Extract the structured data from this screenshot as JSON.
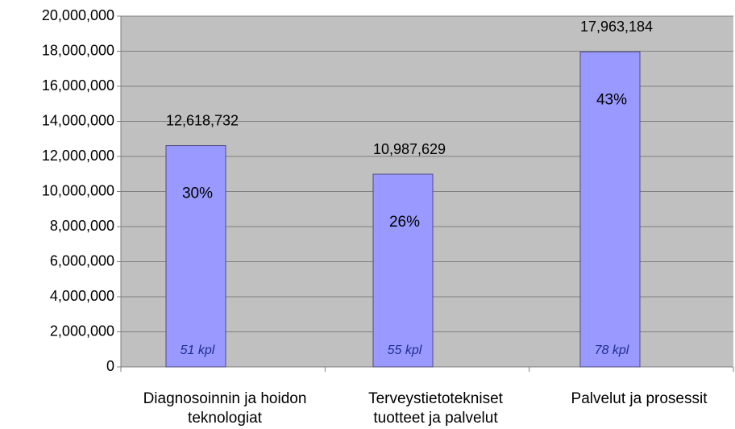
{
  "chart_data": {
    "type": "bar",
    "categories": [
      "Diagnosoinnin ja hoidon teknologiat",
      "Terveystietotekniset tuotteet ja palvelut",
      "Palvelut ja prosessit"
    ],
    "values": [
      12618732,
      10987629,
      17963184
    ],
    "value_labels": [
      "12,618,732",
      "10,987,629",
      "17,963,184"
    ],
    "share_labels": [
      "30%",
      "26%",
      "43%"
    ],
    "count_labels": [
      "51 kpl",
      "55 kpl",
      "78 kpl"
    ],
    "color": "#9999ff",
    "ylim": [
      0,
      20000000
    ],
    "yticks": [
      0,
      {
        "value": 2000000,
        "label": "2,000,000"
      },
      {
        "value": 4000000,
        "label": "4,000,000"
      },
      {
        "value": 6000000,
        "label": "6,000,000"
      },
      {
        "value": 8000000,
        "label": "8,000,000"
      },
      {
        "value": 10000000,
        "label": "10,000,000"
      },
      {
        "value": 12000000,
        "label": "12,000,000"
      },
      {
        "value": 14000000,
        "label": "14,000,000"
      },
      {
        "value": 16000000,
        "label": "16,000,000"
      },
      {
        "value": 18000000,
        "label": "18,000,000"
      },
      {
        "value": 20000000,
        "label": "20,000,000"
      }
    ],
    "grid": true
  }
}
